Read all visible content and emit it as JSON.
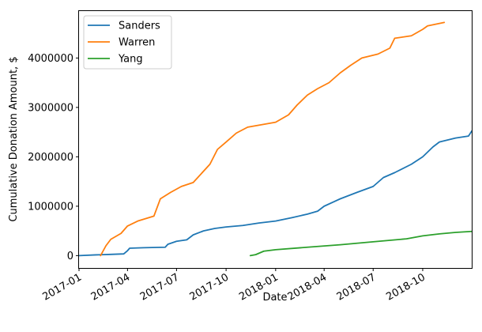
{
  "chart_data": {
    "type": "line",
    "title": "",
    "xlabel": "Date",
    "ylabel": "Cumulative Donation Amount, $",
    "xlim": [
      "2017-01-01",
      "2018-12-31"
    ],
    "ylim": [
      -250000,
      4950000
    ],
    "x_ticks": [
      {
        "date": "2017-01-01",
        "label": "2017-01"
      },
      {
        "date": "2017-04-01",
        "label": "2017-04"
      },
      {
        "date": "2017-07-01",
        "label": "2017-07"
      },
      {
        "date": "2017-10-01",
        "label": "2017-10"
      },
      {
        "date": "2018-01-01",
        "label": "2018-01"
      },
      {
        "date": "2018-04-01",
        "label": "2018-04"
      },
      {
        "date": "2018-07-01",
        "label": "2018-07"
      },
      {
        "date": "2018-10-01",
        "label": "2018-10"
      }
    ],
    "y_ticks": [
      {
        "value": 0,
        "label": "0"
      },
      {
        "value": 1000000,
        "label": "1000000"
      },
      {
        "value": 2000000,
        "label": "2000000"
      },
      {
        "value": 3000000,
        "label": "3000000"
      },
      {
        "value": 4000000,
        "label": "4000000"
      }
    ],
    "grid": false,
    "legend_position": "top-left",
    "series": [
      {
        "name": "Sanders",
        "color": "#1f77b4",
        "points": [
          [
            "2017-01-01",
            0
          ],
          [
            "2017-02-01",
            15000
          ],
          [
            "2017-03-01",
            25000
          ],
          [
            "2017-03-25",
            35000
          ],
          [
            "2017-04-01",
            100000
          ],
          [
            "2017-04-05",
            150000
          ],
          [
            "2017-05-01",
            160000
          ],
          [
            "2017-06-10",
            170000
          ],
          [
            "2017-06-15",
            230000
          ],
          [
            "2017-07-01",
            290000
          ],
          [
            "2017-07-20",
            320000
          ],
          [
            "2017-08-01",
            420000
          ],
          [
            "2017-08-20",
            500000
          ],
          [
            "2017-09-10",
            550000
          ],
          [
            "2017-10-01",
            580000
          ],
          [
            "2017-11-01",
            610000
          ],
          [
            "2017-12-01",
            660000
          ],
          [
            "2018-01-01",
            700000
          ],
          [
            "2018-02-01",
            770000
          ],
          [
            "2018-03-01",
            840000
          ],
          [
            "2018-03-20",
            900000
          ],
          [
            "2018-04-01",
            1000000
          ],
          [
            "2018-05-01",
            1150000
          ],
          [
            "2018-06-01",
            1280000
          ],
          [
            "2018-07-01",
            1400000
          ],
          [
            "2018-07-20",
            1580000
          ],
          [
            "2018-08-10",
            1680000
          ],
          [
            "2018-09-10",
            1850000
          ],
          [
            "2018-10-01",
            2000000
          ],
          [
            "2018-10-20",
            2200000
          ],
          [
            "2018-11-01",
            2300000
          ],
          [
            "2018-12-01",
            2380000
          ],
          [
            "2018-12-25",
            2420000
          ],
          [
            "2018-12-31",
            2520000
          ]
        ]
      },
      {
        "name": "Warren",
        "color": "#ff7f0e",
        "points": [
          [
            "2017-02-10",
            0
          ],
          [
            "2017-02-20",
            200000
          ],
          [
            "2017-03-01",
            330000
          ],
          [
            "2017-03-20",
            450000
          ],
          [
            "2017-04-01",
            600000
          ],
          [
            "2017-04-20",
            700000
          ],
          [
            "2017-05-20",
            800000
          ],
          [
            "2017-06-01",
            1150000
          ],
          [
            "2017-06-20",
            1280000
          ],
          [
            "2017-07-10",
            1400000
          ],
          [
            "2017-08-01",
            1480000
          ],
          [
            "2017-09-01",
            1850000
          ],
          [
            "2017-09-15",
            2150000
          ],
          [
            "2017-10-01",
            2300000
          ],
          [
            "2017-10-20",
            2480000
          ],
          [
            "2017-11-10",
            2600000
          ],
          [
            "2018-01-01",
            2700000
          ],
          [
            "2018-01-25",
            2850000
          ],
          [
            "2018-02-10",
            3050000
          ],
          [
            "2018-03-01",
            3250000
          ],
          [
            "2018-03-20",
            3380000
          ],
          [
            "2018-04-10",
            3500000
          ],
          [
            "2018-05-01",
            3700000
          ],
          [
            "2018-05-20",
            3850000
          ],
          [
            "2018-06-10",
            4000000
          ],
          [
            "2018-07-10",
            4080000
          ],
          [
            "2018-08-01",
            4200000
          ],
          [
            "2018-08-10",
            4400000
          ],
          [
            "2018-09-10",
            4450000
          ],
          [
            "2018-10-01",
            4580000
          ],
          [
            "2018-10-10",
            4650000
          ],
          [
            "2018-11-10",
            4720000
          ]
        ]
      },
      {
        "name": "Yang",
        "color": "#2ca02c",
        "points": [
          [
            "2017-11-15",
            0
          ],
          [
            "2017-11-25",
            20000
          ],
          [
            "2017-12-10",
            90000
          ],
          [
            "2018-01-01",
            120000
          ],
          [
            "2018-03-01",
            170000
          ],
          [
            "2018-05-01",
            220000
          ],
          [
            "2018-07-01",
            280000
          ],
          [
            "2018-09-01",
            340000
          ],
          [
            "2018-10-01",
            400000
          ],
          [
            "2018-11-01",
            440000
          ],
          [
            "2018-12-01",
            470000
          ],
          [
            "2018-12-31",
            490000
          ]
        ]
      }
    ]
  }
}
